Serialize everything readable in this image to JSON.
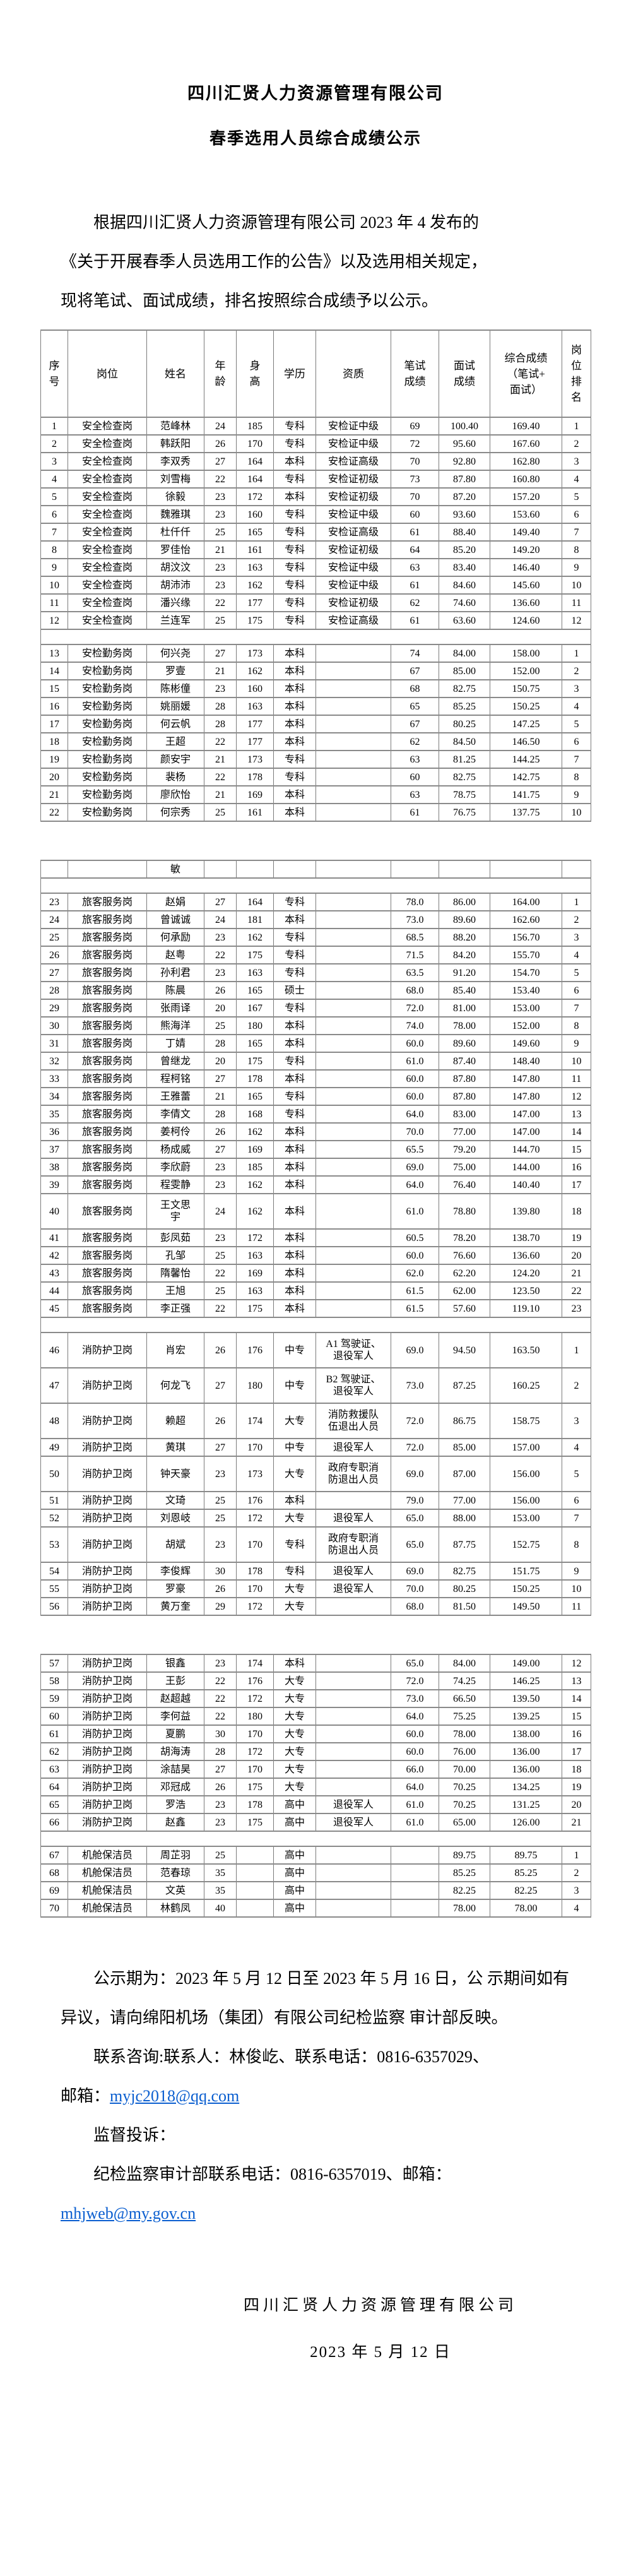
{
  "doc": {
    "title_company": "四川汇贤人力资源管理有限公司",
    "title_subject": "春季选用人员综合成绩公示",
    "intro": "根据四川汇贤人力资源管理有限公司 2023 年 4 发布的\n《关于开展春季人员选用工作的公告》以及选用相关规定，\n现将笔试、面试成绩，排名按照综合成绩予以公示。"
  },
  "table": {
    "headers": [
      "序\n号",
      "岗位",
      "姓名",
      "年\n龄",
      "身\n高",
      "学历",
      "资质",
      "笔试\n成绩",
      "面试\n成绩",
      "综合成绩\n（笔试+\n面试）",
      "岗\n位\n排\n名"
    ],
    "rows": [
      {
        "t": "d",
        "c": [
          "1",
          "安全检查岗",
          "范峰林",
          "24",
          "185",
          "专科",
          "安检证中级",
          "69",
          "100.40",
          "169.40",
          "1"
        ]
      },
      {
        "t": "d",
        "c": [
          "2",
          "安全检查岗",
          "韩跃阳",
          "26",
          "170",
          "专科",
          "安检证中级",
          "72",
          "95.60",
          "167.60",
          "2"
        ]
      },
      {
        "t": "d",
        "c": [
          "3",
          "安全检查岗",
          "李双秀",
          "27",
          "164",
          "本科",
          "安检证高级",
          "70",
          "92.80",
          "162.80",
          "3"
        ]
      },
      {
        "t": "d",
        "c": [
          "4",
          "安全检查岗",
          "刘雪梅",
          "22",
          "164",
          "专科",
          "安检证初级",
          "73",
          "87.80",
          "160.80",
          "4"
        ]
      },
      {
        "t": "d",
        "c": [
          "5",
          "安全检查岗",
          "徐毅",
          "23",
          "172",
          "本科",
          "安检证初级",
          "70",
          "87.20",
          "157.20",
          "5"
        ]
      },
      {
        "t": "d",
        "c": [
          "6",
          "安全检查岗",
          "魏雅琪",
          "23",
          "160",
          "专科",
          "安检证中级",
          "60",
          "93.60",
          "153.60",
          "6"
        ]
      },
      {
        "t": "d",
        "c": [
          "7",
          "安全检查岗",
          "杜仟仟",
          "25",
          "165",
          "专科",
          "安检证高级",
          "61",
          "88.40",
          "149.40",
          "7"
        ]
      },
      {
        "t": "d",
        "c": [
          "8",
          "安全检查岗",
          "罗佳怡",
          "21",
          "161",
          "专科",
          "安检证初级",
          "64",
          "85.20",
          "149.20",
          "8"
        ]
      },
      {
        "t": "d",
        "c": [
          "9",
          "安全检查岗",
          "胡汶汶",
          "23",
          "163",
          "专科",
          "安检证中级",
          "63",
          "83.40",
          "146.40",
          "9"
        ]
      },
      {
        "t": "d",
        "c": [
          "10",
          "安全检查岗",
          "胡沛沛",
          "23",
          "162",
          "专科",
          "安检证中级",
          "61",
          "84.60",
          "145.60",
          "10"
        ]
      },
      {
        "t": "d",
        "c": [
          "11",
          "安全检查岗",
          "潘兴缘",
          "22",
          "177",
          "专科",
          "安检证初级",
          "62",
          "74.60",
          "136.60",
          "11"
        ]
      },
      {
        "t": "d",
        "c": [
          "12",
          "安全检查岗",
          "兰连军",
          "25",
          "175",
          "专科",
          "安检证高级",
          "61",
          "63.60",
          "124.60",
          "12"
        ]
      },
      {
        "t": "s"
      },
      {
        "t": "d",
        "c": [
          "13",
          "安检勤务岗",
          "何兴尧",
          "27",
          "173",
          "本科",
          "",
          "74",
          "84.00",
          "158.00",
          "1"
        ]
      },
      {
        "t": "d",
        "c": [
          "14",
          "安检勤务岗",
          "罗壹",
          "21",
          "162",
          "本科",
          "",
          "67",
          "85.00",
          "152.00",
          "2"
        ]
      },
      {
        "t": "d",
        "c": [
          "15",
          "安检勤务岗",
          "陈彬僮",
          "23",
          "160",
          "本科",
          "",
          "68",
          "82.75",
          "150.75",
          "3"
        ]
      },
      {
        "t": "d",
        "c": [
          "16",
          "安检勤务岗",
          "姚丽媛",
          "28",
          "163",
          "本科",
          "",
          "65",
          "85.25",
          "150.25",
          "4"
        ]
      },
      {
        "t": "d",
        "c": [
          "17",
          "安检勤务岗",
          "何云帆",
          "28",
          "177",
          "本科",
          "",
          "67",
          "80.25",
          "147.25",
          "5"
        ]
      },
      {
        "t": "d",
        "c": [
          "18",
          "安检勤务岗",
          "王超",
          "22",
          "177",
          "本科",
          "",
          "62",
          "84.50",
          "146.50",
          "6"
        ]
      },
      {
        "t": "d",
        "c": [
          "19",
          "安检勤务岗",
          "颜安宇",
          "21",
          "173",
          "专科",
          "",
          "63",
          "81.25",
          "144.25",
          "7"
        ]
      },
      {
        "t": "d",
        "c": [
          "20",
          "安检勤务岗",
          "裴杨",
          "22",
          "178",
          "专科",
          "",
          "60",
          "82.75",
          "142.75",
          "8"
        ]
      },
      {
        "t": "d",
        "c": [
          "21",
          "安检勤务岗",
          "廖欣怡",
          "21",
          "169",
          "本科",
          "",
          "63",
          "78.75",
          "141.75",
          "9"
        ]
      },
      {
        "t": "d",
        "c": [
          "22",
          "安检勤务岗",
          "何宗秀",
          "25",
          "161",
          "本科",
          "",
          "61",
          "76.75",
          "137.75",
          "10"
        ]
      },
      {
        "t": "g"
      },
      {
        "t": "d",
        "c": [
          "",
          "",
          "敏",
          "",
          "",
          "",
          "",
          "",
          "",
          "",
          ""
        ]
      },
      {
        "t": "s"
      },
      {
        "t": "d",
        "c": [
          "23",
          "旅客服务岗",
          "赵娟",
          "27",
          "164",
          "专科",
          "",
          "78.0",
          "86.00",
          "164.00",
          "1"
        ]
      },
      {
        "t": "d",
        "c": [
          "24",
          "旅客服务岗",
          "曾诚诚",
          "24",
          "181",
          "本科",
          "",
          "73.0",
          "89.60",
          "162.60",
          "2"
        ]
      },
      {
        "t": "d",
        "c": [
          "25",
          "旅客服务岗",
          "何承励",
          "23",
          "162",
          "专科",
          "",
          "68.5",
          "88.20",
          "156.70",
          "3"
        ]
      },
      {
        "t": "d",
        "c": [
          "26",
          "旅客服务岗",
          "赵粤",
          "22",
          "175",
          "专科",
          "",
          "71.5",
          "84.20",
          "155.70",
          "4"
        ]
      },
      {
        "t": "d",
        "c": [
          "27",
          "旅客服务岗",
          "孙利君",
          "23",
          "163",
          "专科",
          "",
          "63.5",
          "91.20",
          "154.70",
          "5"
        ]
      },
      {
        "t": "d",
        "c": [
          "28",
          "旅客服务岗",
          "陈晨",
          "26",
          "165",
          "硕士",
          "",
          "68.0",
          "85.40",
          "153.40",
          "6"
        ]
      },
      {
        "t": "d",
        "c": [
          "29",
          "旅客服务岗",
          "张雨译",
          "20",
          "167",
          "专科",
          "",
          "72.0",
          "81.00",
          "153.00",
          "7"
        ]
      },
      {
        "t": "d",
        "c": [
          "30",
          "旅客服务岗",
          "熊海洋",
          "25",
          "180",
          "本科",
          "",
          "74.0",
          "78.00",
          "152.00",
          "8"
        ]
      },
      {
        "t": "d",
        "c": [
          "31",
          "旅客服务岗",
          "丁婧",
          "28",
          "165",
          "本科",
          "",
          "60.0",
          "89.60",
          "149.60",
          "9"
        ]
      },
      {
        "t": "d",
        "c": [
          "32",
          "旅客服务岗",
          "曾继龙",
          "20",
          "175",
          "专科",
          "",
          "61.0",
          "87.40",
          "148.40",
          "10"
        ]
      },
      {
        "t": "d",
        "c": [
          "33",
          "旅客服务岗",
          "程柯铭",
          "27",
          "178",
          "本科",
          "",
          "60.0",
          "87.80",
          "147.80",
          "11"
        ]
      },
      {
        "t": "d",
        "c": [
          "34",
          "旅客服务岗",
          "王雅蕾",
          "21",
          "165",
          "专科",
          "",
          "60.0",
          "87.80",
          "147.80",
          "12"
        ]
      },
      {
        "t": "d",
        "c": [
          "35",
          "旅客服务岗",
          "李倩文",
          "28",
          "168",
          "专科",
          "",
          "64.0",
          "83.00",
          "147.00",
          "13"
        ]
      },
      {
        "t": "d",
        "c": [
          "36",
          "旅客服务岗",
          "姜柯伶",
          "26",
          "162",
          "本科",
          "",
          "70.0",
          "77.00",
          "147.00",
          "14"
        ]
      },
      {
        "t": "d",
        "c": [
          "37",
          "旅客服务岗",
          "杨成威",
          "27",
          "169",
          "本科",
          "",
          "65.5",
          "79.20",
          "144.70",
          "15"
        ]
      },
      {
        "t": "d",
        "c": [
          "38",
          "旅客服务岗",
          "李欣蔚",
          "23",
          "185",
          "本科",
          "",
          "69.0",
          "75.00",
          "144.00",
          "16"
        ]
      },
      {
        "t": "d",
        "c": [
          "39",
          "旅客服务岗",
          "程雯静",
          "23",
          "162",
          "本科",
          "",
          "64.0",
          "76.40",
          "140.40",
          "17"
        ]
      },
      {
        "t": "d",
        "tall": true,
        "c": [
          "40",
          "旅客服务岗",
          "王文思\n宇",
          "24",
          "162",
          "本科",
          "",
          "61.0",
          "78.80",
          "139.80",
          "18"
        ]
      },
      {
        "t": "d",
        "c": [
          "41",
          "旅客服务岗",
          "彭凤茹",
          "23",
          "172",
          "本科",
          "",
          "60.5",
          "78.20",
          "138.70",
          "19"
        ]
      },
      {
        "t": "d",
        "c": [
          "42",
          "旅客服务岗",
          "孔邹",
          "25",
          "163",
          "本科",
          "",
          "60.0",
          "76.60",
          "136.60",
          "20"
        ]
      },
      {
        "t": "d",
        "c": [
          "43",
          "旅客服务岗",
          "隋馨怡",
          "22",
          "169",
          "本科",
          "",
          "62.0",
          "62.20",
          "124.20",
          "21"
        ]
      },
      {
        "t": "d",
        "c": [
          "44",
          "旅客服务岗",
          "王旭",
          "25",
          "163",
          "本科",
          "",
          "61.5",
          "62.00",
          "123.50",
          "22"
        ]
      },
      {
        "t": "d",
        "c": [
          "45",
          "旅客服务岗",
          "李正强",
          "22",
          "175",
          "本科",
          "",
          "61.5",
          "57.60",
          "119.10",
          "23"
        ]
      },
      {
        "t": "s"
      },
      {
        "t": "d",
        "tall": true,
        "c": [
          "46",
          "消防护卫岗",
          "肖宏",
          "26",
          "176",
          "中专",
          "A1 驾驶证、\n退役军人",
          "69.0",
          "94.50",
          "163.50",
          "1"
        ]
      },
      {
        "t": "d",
        "tall": true,
        "c": [
          "47",
          "消防护卫岗",
          "何龙飞",
          "27",
          "180",
          "中专",
          "B2 驾驶证、\n退役军人",
          "73.0",
          "87.25",
          "160.25",
          "2"
        ]
      },
      {
        "t": "d",
        "tall": true,
        "c": [
          "48",
          "消防护卫岗",
          "赖超",
          "26",
          "174",
          "大专",
          "消防救援队\n伍退出人员",
          "72.0",
          "86.75",
          "158.75",
          "3"
        ]
      },
      {
        "t": "d",
        "c": [
          "49",
          "消防护卫岗",
          "黄琪",
          "27",
          "170",
          "中专",
          "退役军人",
          "72.0",
          "85.00",
          "157.00",
          "4"
        ]
      },
      {
        "t": "d",
        "tall": true,
        "c": [
          "50",
          "消防护卫岗",
          "钟天豪",
          "23",
          "173",
          "大专",
          "政府专职消\n防退出人员",
          "69.0",
          "87.00",
          "156.00",
          "5"
        ]
      },
      {
        "t": "d",
        "c": [
          "51",
          "消防护卫岗",
          "文琦",
          "25",
          "176",
          "本科",
          "",
          "79.0",
          "77.00",
          "156.00",
          "6"
        ]
      },
      {
        "t": "d",
        "c": [
          "52",
          "消防护卫岗",
          "刘恩岐",
          "25",
          "172",
          "大专",
          "退役军人",
          "65.0",
          "88.00",
          "153.00",
          "7"
        ]
      },
      {
        "t": "d",
        "tall": true,
        "c": [
          "53",
          "消防护卫岗",
          "胡斌",
          "23",
          "170",
          "专科",
          "政府专职消\n防退出人员",
          "65.0",
          "87.75",
          "152.75",
          "8"
        ]
      },
      {
        "t": "d",
        "c": [
          "54",
          "消防护卫岗",
          "李俊辉",
          "30",
          "178",
          "专科",
          "退役军人",
          "69.0",
          "82.75",
          "151.75",
          "9"
        ]
      },
      {
        "t": "d",
        "c": [
          "55",
          "消防护卫岗",
          "罗豪",
          "26",
          "170",
          "大专",
          "退役军人",
          "70.0",
          "80.25",
          "150.25",
          "10"
        ]
      },
      {
        "t": "d",
        "c": [
          "56",
          "消防护卫岗",
          "黄万奎",
          "29",
          "172",
          "大专",
          "",
          "68.0",
          "81.50",
          "149.50",
          "11"
        ]
      },
      {
        "t": "g"
      },
      {
        "t": "d",
        "c": [
          "57",
          "消防护卫岗",
          "银鑫",
          "23",
          "174",
          "本科",
          "",
          "65.0",
          "84.00",
          "149.00",
          "12"
        ]
      },
      {
        "t": "d",
        "c": [
          "58",
          "消防护卫岗",
          "王彭",
          "22",
          "176",
          "大专",
          "",
          "72.0",
          "74.25",
          "146.25",
          "13"
        ]
      },
      {
        "t": "d",
        "c": [
          "59",
          "消防护卫岗",
          "赵超越",
          "22",
          "172",
          "大专",
          "",
          "73.0",
          "66.50",
          "139.50",
          "14"
        ]
      },
      {
        "t": "d",
        "c": [
          "60",
          "消防护卫岗",
          "李何益",
          "22",
          "180",
          "大专",
          "",
          "64.0",
          "75.25",
          "139.25",
          "15"
        ]
      },
      {
        "t": "d",
        "c": [
          "61",
          "消防护卫岗",
          "夏鹏",
          "30",
          "170",
          "大专",
          "",
          "60.0",
          "78.00",
          "138.00",
          "16"
        ]
      },
      {
        "t": "d",
        "c": [
          "62",
          "消防护卫岗",
          "胡海涛",
          "28",
          "172",
          "大专",
          "",
          "60.0",
          "76.00",
          "136.00",
          "17"
        ]
      },
      {
        "t": "d",
        "c": [
          "63",
          "消防护卫岗",
          "涂喆昊",
          "27",
          "170",
          "大专",
          "",
          "66.0",
          "70.00",
          "136.00",
          "18"
        ]
      },
      {
        "t": "d",
        "c": [
          "64",
          "消防护卫岗",
          "邓冠成",
          "26",
          "175",
          "大专",
          "",
          "64.0",
          "70.25",
          "134.25",
          "19"
        ]
      },
      {
        "t": "d",
        "c": [
          "65",
          "消防护卫岗",
          "罗浩",
          "23",
          "178",
          "高中",
          "退役军人",
          "61.0",
          "70.25",
          "131.25",
          "20"
        ]
      },
      {
        "t": "d",
        "c": [
          "66",
          "消防护卫岗",
          "赵鑫",
          "23",
          "175",
          "高中",
          "退役军人",
          "61.0",
          "65.00",
          "126.00",
          "21"
        ]
      },
      {
        "t": "s"
      },
      {
        "t": "d",
        "c": [
          "67",
          "机舱保洁员",
          "周芷羽",
          "25",
          "",
          "高中",
          "",
          "",
          "89.75",
          "89.75",
          "1"
        ]
      },
      {
        "t": "d",
        "c": [
          "68",
          "机舱保洁员",
          "范春琼",
          "35",
          "",
          "高中",
          "",
          "",
          "85.25",
          "85.25",
          "2"
        ]
      },
      {
        "t": "d",
        "c": [
          "69",
          "机舱保洁员",
          "文英",
          "35",
          "",
          "高中",
          "",
          "",
          "82.25",
          "82.25",
          "3"
        ]
      },
      {
        "t": "d",
        "c": [
          "70",
          "机舱保洁员",
          "林鹤凤",
          "40",
          "",
          "高中",
          "",
          "",
          "78.00",
          "78.00",
          "4"
        ]
      }
    ]
  },
  "footer": {
    "notice": "公示期为：2023 年 5 月 12 日至 2023 年 5 月 16 日，公\n示期间如有异议，请向绵阳机场（集团）有限公司纪检监察\n审计部反映。",
    "contact_line1": "联系咨询:联系人：林俊屹、联系电话：0816-6357029、",
    "contact_line2_prefix": "邮箱：",
    "contact_email": "myjc2018@qq.com",
    "supervise": "监督投诉：",
    "discipline_line": "纪检监察审计部联系电话：0816-6357019、邮箱：",
    "discipline_email": "mhjweb@my.gov.cn",
    "signature_company": "四川汇贤人力资源管理有限公司",
    "signature_date": "2023 年 5 月 12 日"
  },
  "colors": {
    "link": "#0B5FD0",
    "border": "#7b7b7b",
    "text": "#000000",
    "background": "#ffffff"
  }
}
